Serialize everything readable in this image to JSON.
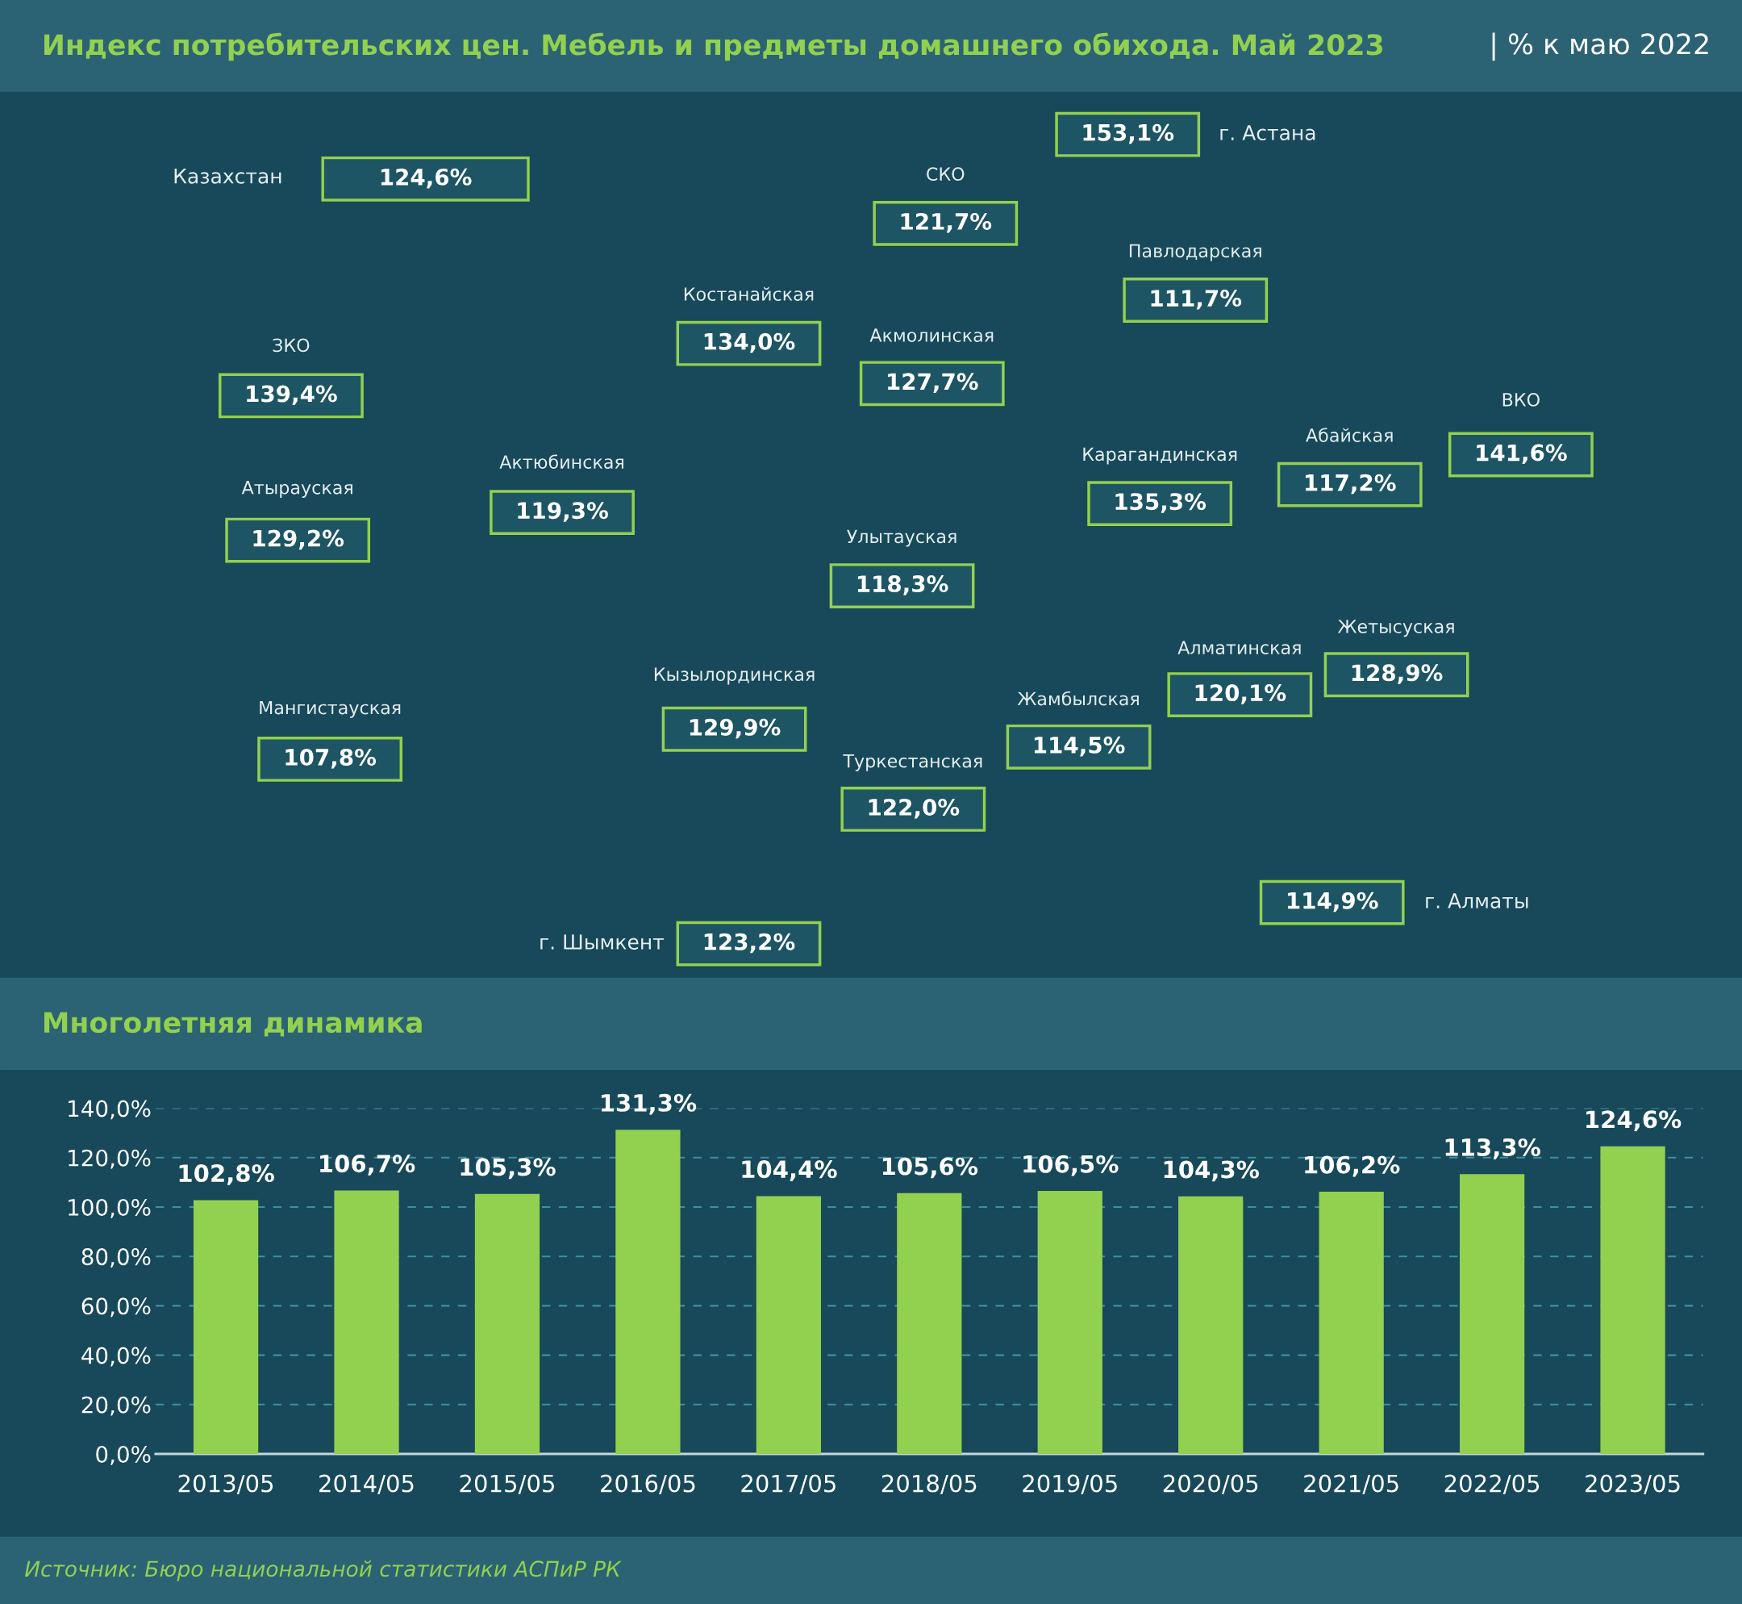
{
  "chart_data": [
    {
      "type": "other",
      "title": "Индекс потребительских цен. Мебель и предметы домашнего обихода. Май 2023",
      "subtitle": "| % к маю 2022",
      "categories": [
        "Казахстан",
        "г. Астана",
        "СКО",
        "Павлодарская",
        "Костанайская",
        "Акмолинская",
        "ЗКО",
        "ВКО",
        "Абайская",
        "Карагандинская",
        "Актюбинская",
        "Атырауская",
        "Улытауская",
        "Жетысуская",
        "Алматинская",
        "Кызылординская",
        "Жамбылская",
        "Мангистауская",
        "Туркестанская",
        "г. Алматы",
        "г. Шымкент"
      ],
      "values": [
        124.6,
        153.1,
        121.7,
        111.7,
        134.0,
        127.7,
        139.4,
        141.6,
        117.2,
        135.3,
        119.3,
        129.2,
        118.3,
        128.9,
        120.1,
        129.9,
        114.5,
        107.8,
        122.0,
        114.9,
        123.2
      ],
      "value_labels": [
        "124,6%",
        "153,1%",
        "121,7%",
        "111,7%",
        "134,0%",
        "127,7%",
        "139,4%",
        "141,6%",
        "117,2%",
        "135,3%",
        "119,3%",
        "129,2%",
        "118,3%",
        "128,9%",
        "120,1%",
        "129,9%",
        "114,5%",
        "107,8%",
        "122,0%",
        "114,9%",
        "123,2%"
      ],
      "color": "#92d050"
    },
    {
      "type": "bar",
      "title": "Многолетняя динамика",
      "categories": [
        "2013/05",
        "2014/05",
        "2015/05",
        "2016/05",
        "2017/05",
        "2018/05",
        "2019/05",
        "2020/05",
        "2021/05",
        "2022/05",
        "2023/05"
      ],
      "values": [
        102.8,
        106.7,
        105.3,
        131.3,
        104.4,
        105.6,
        106.5,
        104.3,
        106.2,
        113.3,
        124.6
      ],
      "value_labels": [
        "102,8%",
        "106,7%",
        "105,3%",
        "131,3%",
        "104,4%",
        "105,6%",
        "106,5%",
        "104,3%",
        "106,2%",
        "113,3%",
        "124,6%"
      ],
      "color": "#92d050",
      "ylim": [
        0,
        140
      ],
      "yticks": [
        {
          "value": 0,
          "label": "0,0%"
        },
        {
          "value": 20,
          "label": "20,0%"
        },
        {
          "value": 40,
          "label": "40,0%"
        },
        {
          "value": 60,
          "label": "60,0%"
        },
        {
          "value": 80,
          "label": "80,0%"
        },
        {
          "value": 100,
          "label": "100,0%"
        },
        {
          "value": 120,
          "label": "120,0%"
        },
        {
          "value": 140,
          "label": "140,0%"
        }
      ],
      "grid": "y",
      "line_style": "dashed",
      "annotations": [
        "Источник: Бюро национальной статистики АСПиР РК"
      ]
    }
  ]
}
